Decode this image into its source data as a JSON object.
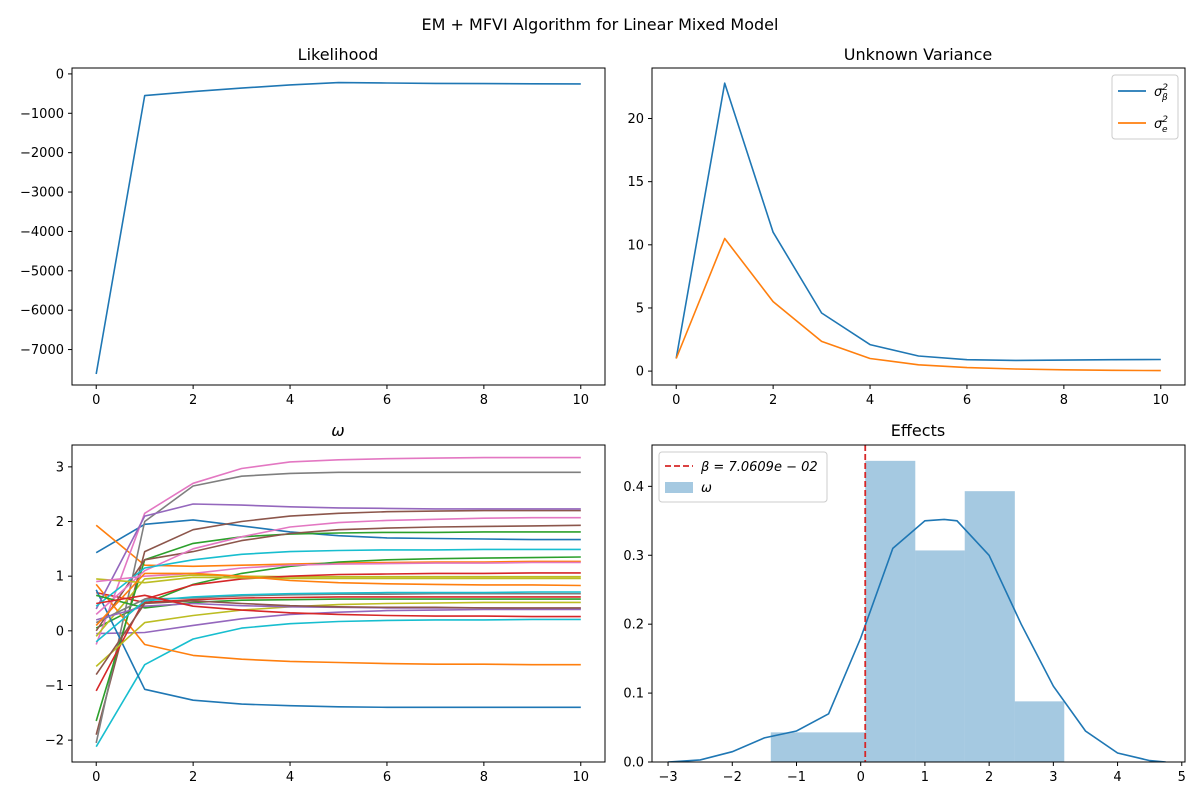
{
  "suptitle": "EM + MFVI Algorithm for Linear Mixed Model",
  "chart_data": [
    {
      "id": "likelihood",
      "type": "line",
      "title": "Likelihood",
      "xlim": [
        -0.5,
        10.5
      ],
      "ylim": [
        -7900,
        150
      ],
      "xticks": [
        0,
        2,
        4,
        6,
        8,
        10
      ],
      "yticks": [
        0,
        -1000,
        -2000,
        -3000,
        -4000,
        -5000,
        -6000,
        -7000
      ],
      "series": [
        {
          "color": "#1f77b4",
          "x": [
            0,
            1,
            2,
            3,
            4,
            5,
            6,
            7,
            8,
            9,
            10
          ],
          "y": [
            -7620,
            -550,
            -450,
            -360,
            -280,
            -220,
            -230,
            -240,
            -245,
            -250,
            -255
          ]
        }
      ]
    },
    {
      "id": "unknown-variance",
      "type": "line",
      "title": "Unknown Variance",
      "xlim": [
        -0.5,
        10.5
      ],
      "ylim": [
        -1.1,
        24.0
      ],
      "xticks": [
        0,
        2,
        4,
        6,
        8,
        10
      ],
      "yticks": [
        0,
        5,
        10,
        15,
        20
      ],
      "legend": {
        "position": "top-right"
      },
      "series": [
        {
          "name": "σ²_β",
          "color": "#1f77b4",
          "x": [
            0,
            1,
            2,
            3,
            4,
            5,
            6,
            7,
            8,
            9,
            10
          ],
          "y": [
            1.0,
            22.8,
            11.0,
            4.6,
            2.1,
            1.2,
            0.9,
            0.85,
            0.87,
            0.9,
            0.92
          ]
        },
        {
          "name": "σ²_e",
          "color": "#ff7f0e",
          "x": [
            0,
            1,
            2,
            3,
            4,
            5,
            6,
            7,
            8,
            9,
            10
          ],
          "y": [
            1.0,
            10.5,
            5.5,
            2.35,
            1.0,
            0.5,
            0.28,
            0.17,
            0.1,
            0.06,
            0.04
          ]
        }
      ]
    },
    {
      "id": "omega",
      "type": "line",
      "title": "ω",
      "xlim": [
        -0.5,
        10.5
      ],
      "ylim": [
        -2.4,
        3.4
      ],
      "xticks": [
        0,
        2,
        4,
        6,
        8,
        10
      ],
      "yticks": [
        3,
        2,
        1,
        0,
        -1,
        -2
      ],
      "series": [
        {
          "color": "#1f77b4",
          "y": [
            1.43,
            1.95,
            2.03,
            1.92,
            1.81,
            1.74,
            1.7,
            1.69,
            1.68,
            1.67,
            1.67
          ]
        },
        {
          "color": "#ff7f0e",
          "y": [
            1.93,
            1.2,
            1.18,
            1.2,
            1.22,
            1.24,
            1.25,
            1.26,
            1.26,
            1.27,
            1.27
          ]
        },
        {
          "color": "#2ca02c",
          "y": [
            0.05,
            0.5,
            0.85,
            1.05,
            1.18,
            1.26,
            1.3,
            1.32,
            1.33,
            1.34,
            1.35
          ]
        },
        {
          "color": "#d62728",
          "y": [
            0.7,
            0.52,
            0.57,
            0.6,
            0.61,
            0.62,
            0.62,
            0.62,
            0.62,
            0.62,
            0.62
          ]
        },
        {
          "color": "#9467bd",
          "y": [
            -0.05,
            -0.03,
            0.1,
            0.22,
            0.3,
            0.34,
            0.37,
            0.38,
            0.39,
            0.39,
            0.39
          ]
        },
        {
          "color": "#8c564b",
          "y": [
            -1.9,
            1.45,
            1.85,
            2.0,
            2.1,
            2.15,
            2.18,
            2.19,
            2.2,
            2.2,
            2.2
          ]
        },
        {
          "color": "#e377c2",
          "y": [
            -0.25,
            2.15,
            2.7,
            2.97,
            3.09,
            3.13,
            3.15,
            3.16,
            3.17,
            3.17,
            3.17
          ]
        },
        {
          "color": "#7f7f7f",
          "y": [
            -2.05,
            2.0,
            2.65,
            2.83,
            2.88,
            2.9,
            2.9,
            2.9,
            2.9,
            2.9,
            2.9
          ]
        },
        {
          "color": "#bcbd22",
          "y": [
            -0.1,
            0.95,
            1.02,
            1.0,
            0.99,
            0.99,
            0.99,
            0.99,
            0.99,
            0.99,
            0.99
          ]
        },
        {
          "color": "#17becf",
          "y": [
            -2.12,
            -0.62,
            -0.15,
            0.05,
            0.13,
            0.17,
            0.19,
            0.2,
            0.2,
            0.21,
            0.21
          ]
        },
        {
          "color": "#1f77b4",
          "y": [
            0.75,
            -1.07,
            -1.27,
            -1.34,
            -1.37,
            -1.39,
            -1.4,
            -1.4,
            -1.4,
            -1.4,
            -1.4
          ]
        },
        {
          "color": "#ff7f0e",
          "y": [
            0.85,
            -0.25,
            -0.45,
            -0.52,
            -0.56,
            -0.58,
            -0.6,
            -0.61,
            -0.61,
            -0.62,
            -0.62
          ]
        },
        {
          "color": "#2ca02c",
          "y": [
            -1.65,
            1.3,
            1.6,
            1.72,
            1.77,
            1.79,
            1.8,
            1.8,
            1.81,
            1.81,
            1.81
          ]
        },
        {
          "color": "#d62728",
          "y": [
            -1.1,
            0.58,
            0.84,
            0.95,
            1.0,
            1.03,
            1.04,
            1.05,
            1.05,
            1.06,
            1.06
          ]
        },
        {
          "color": "#9467bd",
          "y": [
            0.4,
            2.1,
            2.32,
            2.3,
            2.27,
            2.25,
            2.24,
            2.23,
            2.23,
            2.23,
            2.23
          ]
        },
        {
          "color": "#8c564b",
          "y": [
            0.0,
            1.3,
            1.45,
            1.65,
            1.78,
            1.85,
            1.88,
            1.9,
            1.91,
            1.92,
            1.93
          ]
        },
        {
          "color": "#e377c2",
          "y": [
            0.3,
            1.1,
            1.5,
            1.72,
            1.9,
            1.98,
            2.02,
            2.04,
            2.06,
            2.07,
            2.07
          ]
        },
        {
          "color": "#7f7f7f",
          "y": [
            0.15,
            0.58,
            0.6,
            0.64,
            0.66,
            0.67,
            0.67,
            0.68,
            0.68,
            0.68,
            0.68
          ]
        },
        {
          "color": "#bcbd22",
          "y": [
            -0.65,
            0.15,
            0.28,
            0.38,
            0.44,
            0.48,
            0.5,
            0.51,
            0.52,
            0.52,
            0.52
          ]
        },
        {
          "color": "#17becf",
          "y": [
            0.45,
            1.15,
            1.3,
            1.4,
            1.45,
            1.47,
            1.48,
            1.48,
            1.49,
            1.49,
            1.49
          ]
        },
        {
          "color": "#2ca02c",
          "y": [
            0.65,
            0.42,
            0.52,
            0.56,
            0.57,
            0.58,
            0.58,
            0.58,
            0.58,
            0.58,
            0.58
          ]
        },
        {
          "color": "#bcbd22",
          "y": [
            0.95,
            0.88,
            0.98,
            0.97,
            0.96,
            0.96,
            0.96,
            0.96,
            0.96,
            0.96,
            0.96
          ]
        },
        {
          "color": "#9467bd",
          "y": [
            0.2,
            0.45,
            0.5,
            0.46,
            0.44,
            0.43,
            0.42,
            0.42,
            0.42,
            0.41,
            0.41
          ]
        },
        {
          "color": "#17becf",
          "y": [
            -0.2,
            0.55,
            0.62,
            0.66,
            0.68,
            0.69,
            0.7,
            0.7,
            0.7,
            0.71,
            0.71
          ]
        },
        {
          "color": "#e377c2",
          "y": [
            0.9,
            1.0,
            1.05,
            1.15,
            1.2,
            1.22,
            1.23,
            1.24,
            1.24,
            1.25,
            1.25
          ]
        },
        {
          "color": "#ff7f0e",
          "y": [
            0.1,
            1.05,
            1.05,
            1.0,
            0.92,
            0.88,
            0.86,
            0.85,
            0.84,
            0.84,
            0.83
          ]
        },
        {
          "color": "#8c564b",
          "y": [
            -0.8,
            0.5,
            0.55,
            0.5,
            0.46,
            0.44,
            0.43,
            0.43,
            0.42,
            0.42,
            0.42
          ]
        },
        {
          "color": "#d62728",
          "y": [
            0.5,
            0.65,
            0.45,
            0.38,
            0.33,
            0.3,
            0.28,
            0.27,
            0.27,
            0.26,
            0.26
          ]
        }
      ]
    },
    {
      "id": "effects",
      "type": "bar",
      "title": "Effects",
      "xlim": [
        -3.25,
        5.05
      ],
      "ylim": [
        0,
        0.46
      ],
      "xticks": [
        -3,
        -2,
        -1,
        0,
        1,
        2,
        3,
        4,
        5
      ],
      "yticks": [
        0.0,
        0.1,
        0.2,
        0.3,
        0.4
      ],
      "legend": {
        "position": "top-left"
      },
      "histogram": {
        "name": "ω",
        "color": "#1f77b4",
        "bin_edges": [
          -1.4,
          0.07,
          0.85,
          1.62,
          2.4,
          3.17
        ],
        "density": [
          0.043,
          0.437,
          0.307,
          0.393,
          0.088
        ]
      },
      "kde": {
        "color": "#1f77b4",
        "x": [
          -3.0,
          -2.5,
          -2.0,
          -1.5,
          -1.0,
          -0.5,
          0.0,
          0.5,
          1.0,
          1.3,
          1.5,
          2.0,
          2.5,
          3.0,
          3.5,
          4.0,
          4.5,
          4.75
        ],
        "y": [
          0.0,
          0.003,
          0.015,
          0.035,
          0.045,
          0.07,
          0.18,
          0.31,
          0.35,
          0.352,
          0.35,
          0.3,
          0.2,
          0.11,
          0.045,
          0.013,
          0.002,
          0.0
        ]
      },
      "vline": {
        "name": "β = 7.0609e − 02",
        "x": 0.070609,
        "color": "#d62728",
        "style": "dashed"
      }
    }
  ]
}
